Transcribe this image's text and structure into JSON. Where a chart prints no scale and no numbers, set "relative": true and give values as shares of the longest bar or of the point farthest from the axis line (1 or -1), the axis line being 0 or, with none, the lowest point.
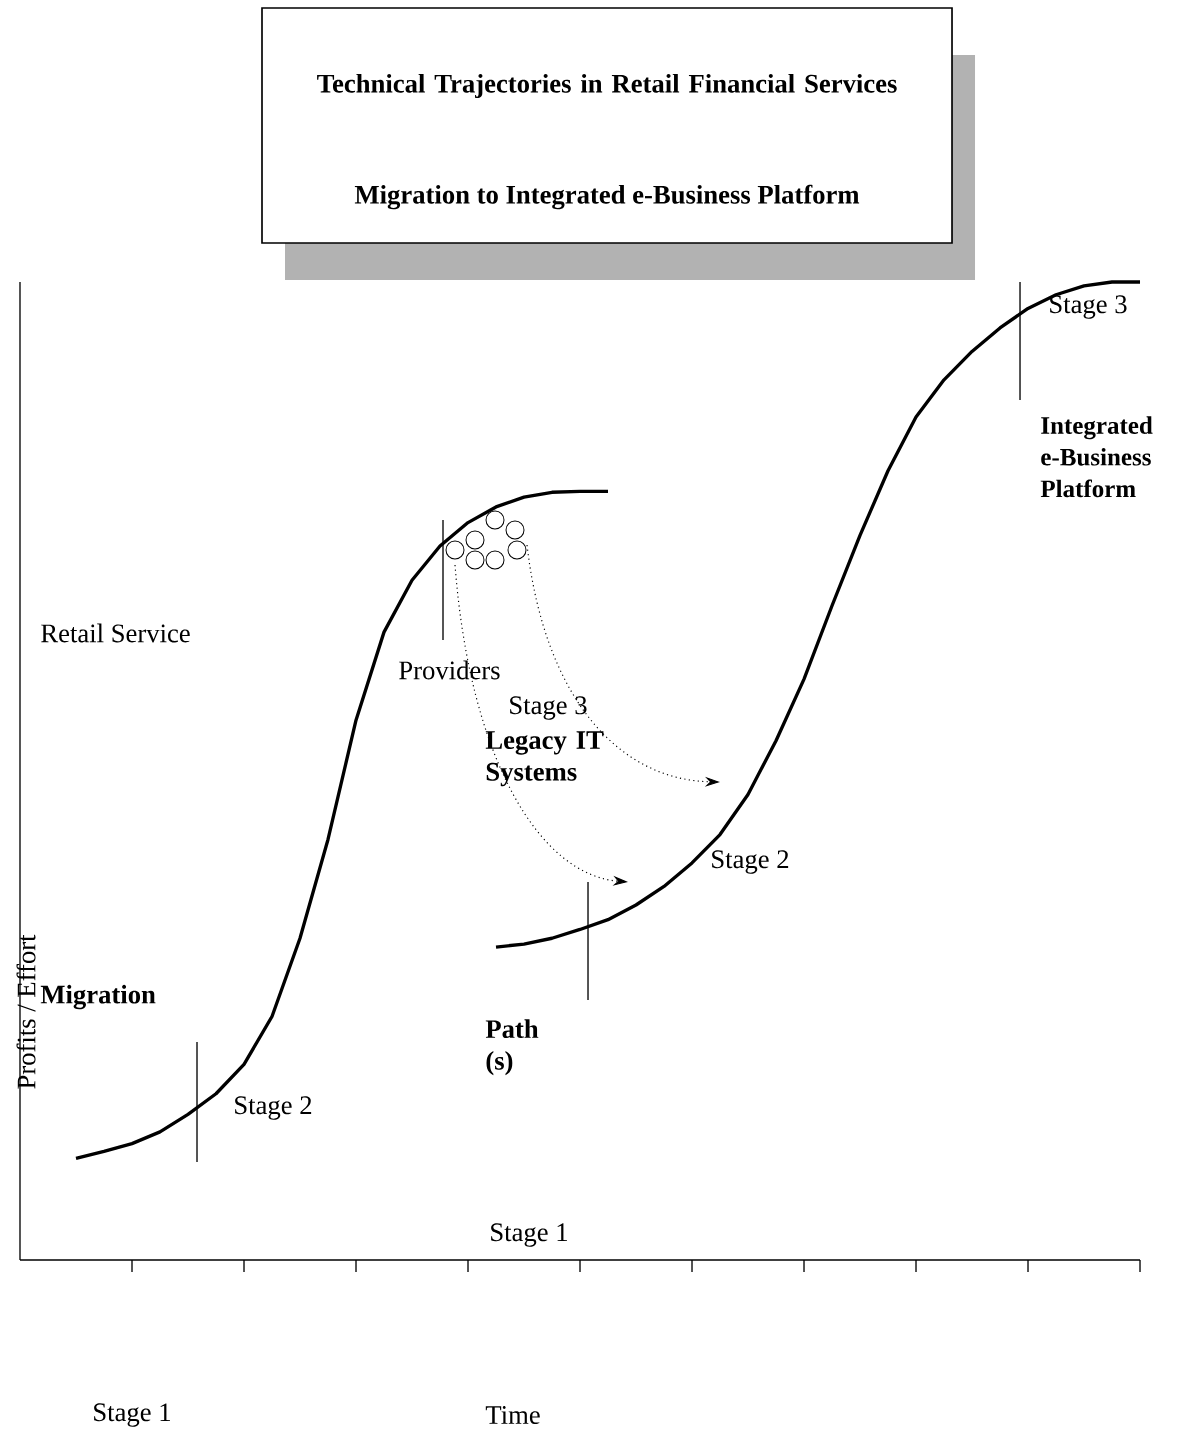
{
  "chart_data": {
    "type": "line",
    "title": "Technical Trajectories in Retail Financial Services",
    "subtitle": "Migration to Integrated e-Business Platform",
    "ylabel": "Profits / Effort",
    "relative": true,
    "categories": [
      null,
      null,
      null,
      null,
      null,
      null,
      null,
      null,
      null,
      null,
      null,
      null,
      null,
      null,
      null,
      null,
      null,
      null,
      null,
      null,
      null,
      null,
      null,
      null,
      null,
      null,
      null,
      null,
      null,
      null,
      null,
      null,
      null,
      null,
      null,
      null,
      null,
      null,
      null,
      null,
      null
    ],
    "annotations": [
      "Retail Service",
      "Providers",
      "Stage 1",
      "Stage 2",
      "Stage 3",
      "Migration",
      "Path (s)",
      "Legacy IT Systems",
      "Stage 2",
      "Stage 3",
      "Integrated e-Business Platform",
      "Stage 1",
      "Time"
    ],
    "series": [
      {
        "type": "line",
        "color": "#000000",
        "values": [
          null,
          null,
          0.104,
          0.111,
          0.119,
          0.131,
          0.149,
          0.17,
          0.2,
          0.249,
          0.329,
          0.43,
          0.552,
          0.642,
          0.695,
          0.73,
          0.754,
          0.77,
          0.78,
          0.785,
          0.786,
          0.786,
          null,
          null,
          null,
          null,
          null,
          null,
          null,
          null,
          null,
          null,
          null,
          null,
          null,
          null,
          null,
          null,
          null,
          null,
          null
        ]
      },
      {
        "type": "line",
        "color": "#000000",
        "values": [
          null,
          null,
          null,
          null,
          null,
          null,
          null,
          null,
          null,
          null,
          null,
          null,
          null,
          null,
          null,
          null,
          null,
          0.32,
          0.323,
          0.329,
          0.338,
          0.348,
          0.363,
          0.382,
          0.406,
          0.435,
          0.476,
          0.531,
          0.594,
          0.669,
          0.741,
          0.807,
          0.862,
          0.9,
          0.929,
          0.953,
          0.973,
          0.987,
          0.996,
          1.0,
          1.0
        ]
      }
    ]
  }
}
